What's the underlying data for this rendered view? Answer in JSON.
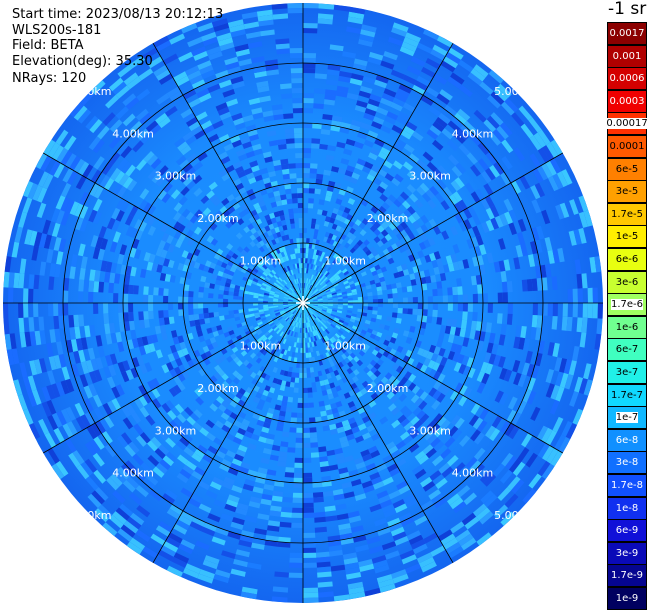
{
  "info": {
    "start_time": "Start time: 2023/08/13 20:12:13",
    "instrument": "WLS200s-181",
    "field": "Field: BETA",
    "elevation": "Elevation(deg): 35.30",
    "nrays": "NRays: 120"
  },
  "colorbar": {
    "unit": "-1 sr",
    "labels": [
      "0.0017",
      "0.001",
      "0.0006",
      "0.0003",
      "0.00017",
      "0.0001",
      "6e-5",
      "3e-5",
      "1.7e-5",
      "1e-5",
      "6e-6",
      "3e-6",
      "1.7e-6",
      "1e-6",
      "6e-7",
      "3e-7",
      "1.7e-7",
      "1e-7",
      "6e-8",
      "3e-8",
      "1.7e-8",
      "1e-8",
      "6e-9",
      "3e-9",
      "1.7e-9",
      "1e-9"
    ],
    "colors": [
      "#8b0000",
      "#b00000",
      "#d40000",
      "#f00000",
      "#ff3000",
      "#ff5a00",
      "#ff8000",
      "#ffa000",
      "#ffc800",
      "#ffee00",
      "#e8ff10",
      "#c8ff30",
      "#a0ff60",
      "#70ff90",
      "#40ffc0",
      "#20f0e8",
      "#10d8ff",
      "#10b8ff",
      "#1090ff",
      "#1070ff",
      "#1050ff",
      "#1030f0",
      "#1010d8",
      "#0a0ab8",
      "#050590",
      "#000060"
    ]
  },
  "ring_labels": [
    "1.00km",
    "2.00km",
    "3.00km",
    "4.00km",
    "5.00km"
  ]
}
